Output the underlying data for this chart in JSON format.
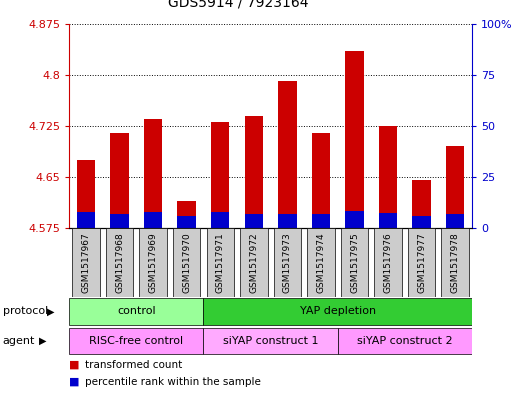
{
  "title": "GDS5914 / 7923164",
  "samples": [
    "GSM1517967",
    "GSM1517968",
    "GSM1517969",
    "GSM1517970",
    "GSM1517971",
    "GSM1517972",
    "GSM1517973",
    "GSM1517974",
    "GSM1517975",
    "GSM1517976",
    "GSM1517977",
    "GSM1517978"
  ],
  "red_values": [
    4.675,
    4.715,
    4.735,
    4.615,
    4.73,
    4.74,
    4.79,
    4.715,
    4.835,
    4.725,
    4.645,
    4.695
  ],
  "blue_values": [
    4.598,
    4.595,
    4.598,
    4.592,
    4.598,
    4.595,
    4.596,
    4.596,
    4.6,
    4.597,
    4.593,
    4.596
  ],
  "bar_base": 4.575,
  "ylim": [
    4.575,
    4.875
  ],
  "yticks": [
    4.575,
    4.65,
    4.725,
    4.8,
    4.875
  ],
  "ytick_labels": [
    "4.575",
    "4.65",
    "4.725",
    "4.8",
    "4.875"
  ],
  "y2ticks": [
    0,
    25,
    50,
    75,
    100
  ],
  "y2tick_labels": [
    "0",
    "25",
    "50",
    "75",
    "100%"
  ],
  "y2lim": [
    0,
    100
  ],
  "red_color": "#cc0000",
  "blue_color": "#0000cc",
  "bar_width": 0.55,
  "protocol_groups": [
    {
      "label": "control",
      "start": 0,
      "end": 4,
      "color": "#99ff99"
    },
    {
      "label": "YAP depletion",
      "start": 4,
      "end": 12,
      "color": "#33cc33"
    }
  ],
  "agent_groups": [
    {
      "label": "RISC-free control",
      "start": 0,
      "end": 4,
      "color": "#ff99ff"
    },
    {
      "label": "siYAP construct 1",
      "start": 4,
      "end": 8,
      "color": "#ffaaff"
    },
    {
      "label": "siYAP construct 2",
      "start": 8,
      "end": 12,
      "color": "#ff99ff"
    }
  ],
  "protocol_label": "protocol",
  "agent_label": "agent",
  "gray_box_color": "#cccccc",
  "bg_color": "#ffffff"
}
